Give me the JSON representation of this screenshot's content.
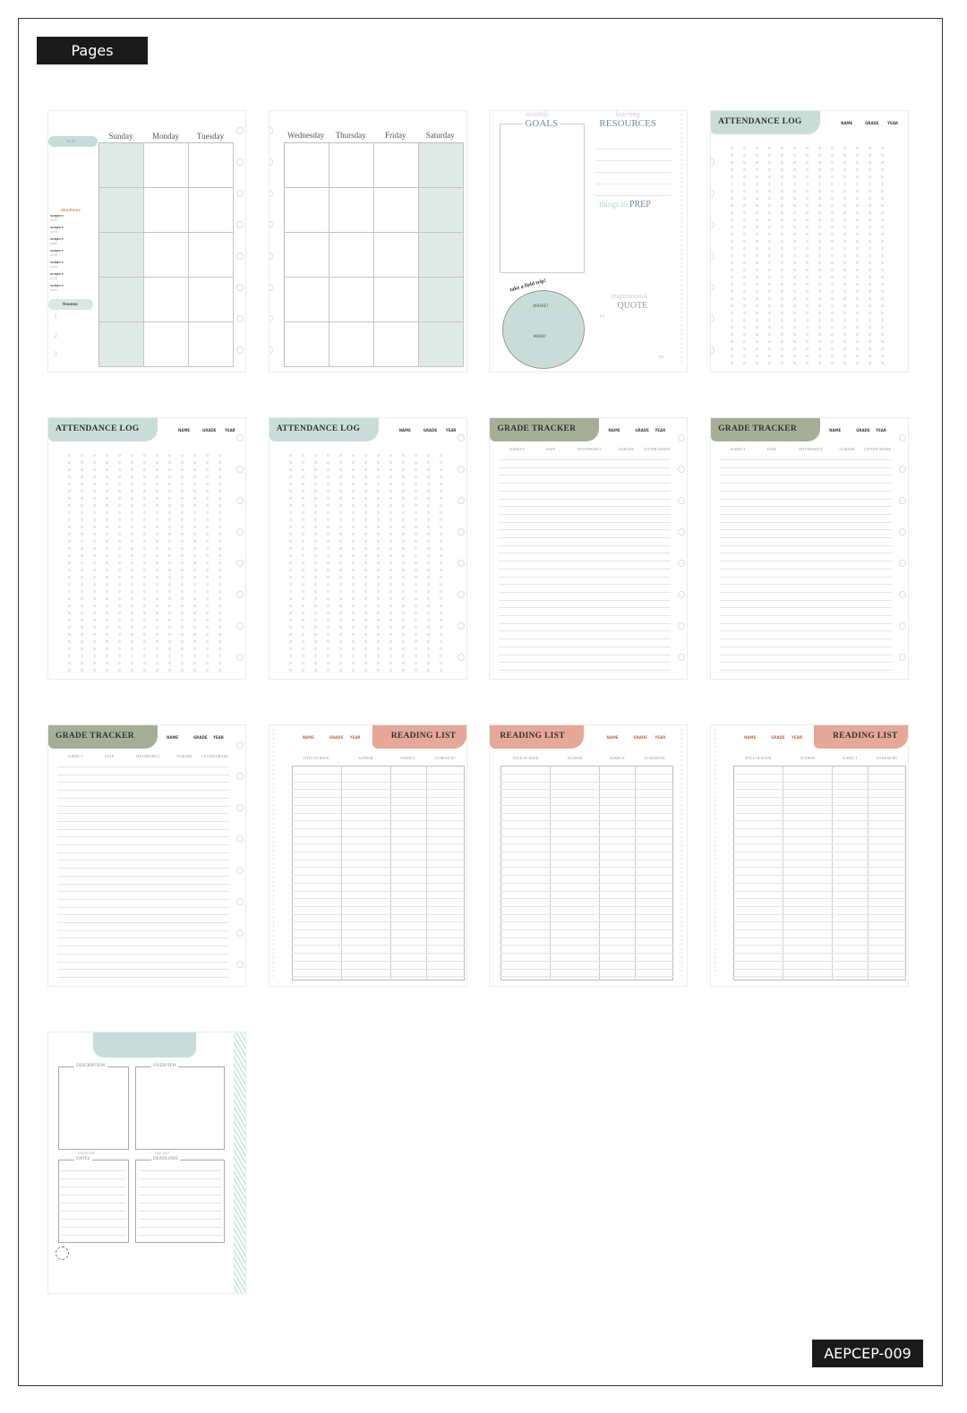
{
  "header": {
    "label": "Pages"
  },
  "footer": {
    "product_code": "AEPCEP-009"
  },
  "colors": {
    "sage": "#c8ddd8",
    "olive": "#a7ae98",
    "blush": "#e6a898",
    "dark": "#1a1a1a"
  },
  "pages": [
    {
      "type": "weekly-left",
      "days": [
        "Sunday",
        "Monday",
        "Tuesday"
      ],
      "todo": "to do",
      "deadlines": "deadlines",
      "subject": "SUBJECT:",
      "date": "DATE:",
      "themes": "themes",
      "numbers": [
        "1",
        "2",
        "3"
      ]
    },
    {
      "type": "weekly-right",
      "days": [
        "Wednesday",
        "Thursday",
        "Friday",
        "Saturday"
      ]
    },
    {
      "type": "goals",
      "goals_small": "monthly",
      "goals": "GOALS",
      "resources_small": "learning",
      "resources": "RESOURCES",
      "prep_small": "things to",
      "prep": "PREP",
      "trip": "take a field trip!",
      "where": "WHERE?",
      "when": "WHEN?",
      "quote_small": "inspirational",
      "quote": "QUOTE"
    },
    {
      "type": "attendance",
      "title": "ATTENDANCE LOG",
      "meta": [
        "NAME",
        "GRADE",
        "YEAR"
      ]
    },
    {
      "type": "attendance",
      "title": "ATTENDANCE LOG",
      "meta": [
        "NAME",
        "GRADE",
        "YEAR"
      ]
    },
    {
      "type": "attendance",
      "title": "ATTENDANCE LOG",
      "meta": [
        "NAME",
        "GRADE",
        "YEAR"
      ]
    },
    {
      "type": "grade",
      "title": "GRADE TRACKER",
      "meta": [
        "NAME",
        "GRADE",
        "YEAR"
      ],
      "columns": [
        "SUBJECT",
        "DATE",
        "TEST/PROJECT",
        "%GRADE",
        "LETTER GRADE"
      ]
    },
    {
      "type": "grade",
      "title": "GRADE TRACKER",
      "meta": [
        "NAME",
        "GRADE",
        "YEAR"
      ],
      "columns": [
        "SUBJECT",
        "DATE",
        "TEST/PROJECT",
        "%GRADE",
        "LETTER GRADE"
      ]
    },
    {
      "type": "grade",
      "title": "GRADE TRACKER",
      "meta": [
        "NAME",
        "GRADE",
        "YEAR"
      ],
      "columns": [
        "SUBJECT",
        "DATE",
        "TEST/PROJECT",
        "%GRADE",
        "LETTER GRADE"
      ]
    },
    {
      "type": "reading",
      "side": "right",
      "title": "READING LIST",
      "meta": [
        "NAME",
        "GRADE",
        "YEAR"
      ],
      "columns": [
        "TITLE OF BOOK",
        "AUTHOR",
        "SUBJECT",
        "TO READ BY"
      ]
    },
    {
      "type": "reading",
      "side": "left",
      "title": "READING LIST",
      "meta": [
        "NAME",
        "GRADE",
        "YEAR"
      ],
      "columns": [
        "TITLE OF BOOK",
        "AUTHOR",
        "SUBJECT",
        "TO READ BY"
      ]
    },
    {
      "type": "reading",
      "side": "right",
      "title": "READING LIST",
      "meta": [
        "NAME",
        "GRADE",
        "YEAR"
      ],
      "columns": [
        "TITLE OF BOOK",
        "AUTHOR",
        "SUBJECT",
        "TO READ BY"
      ]
    },
    {
      "type": "project",
      "description": "DESCRIPTION",
      "overview": "OVERVIEW",
      "dates_small": "important",
      "dates": "DATES",
      "deadlines_small": "due and",
      "deadlines": "DEADLINES"
    }
  ]
}
